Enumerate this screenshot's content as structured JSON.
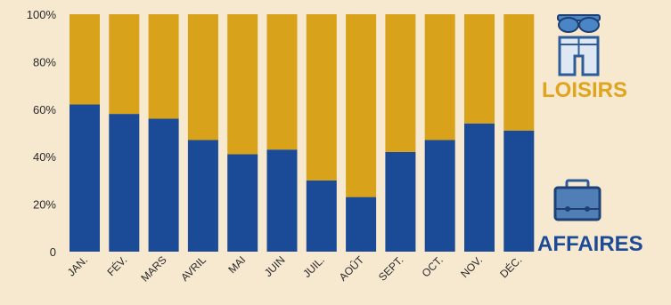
{
  "chart_data": {
    "type": "bar",
    "stacked": true,
    "categories": [
      "JAN.",
      "FÉV.",
      "MARS",
      "AVRIL",
      "MAI",
      "JUIN",
      "JUIL.",
      "AOÛT",
      "SEPT.",
      "OCT.",
      "NOV.",
      "DÉC."
    ],
    "series": [
      {
        "name": "AFFAIRES",
        "values": [
          62,
          58,
          56,
          47,
          41,
          43,
          30,
          23,
          42,
          47,
          54,
          51
        ],
        "color": "#1b4a97"
      },
      {
        "name": "LOISIRS",
        "values": [
          38,
          42,
          44,
          53,
          59,
          57,
          70,
          77,
          58,
          53,
          46,
          49
        ],
        "color": "#d9a21b"
      }
    ],
    "y_ticks": [
      "0",
      "20%",
      "40%",
      "60%",
      "80%",
      "100%"
    ],
    "ylim": [
      0,
      100
    ],
    "grid": false,
    "legend_placement": "right"
  },
  "legend": {
    "loisirs": {
      "label": "LOISIRS",
      "color": "#e0a41d",
      "icon": "sunglasses-shorts-icon"
    },
    "affaires": {
      "label": "AFFAIRES",
      "color": "#1b4a97",
      "icon": "briefcase-icon"
    }
  }
}
